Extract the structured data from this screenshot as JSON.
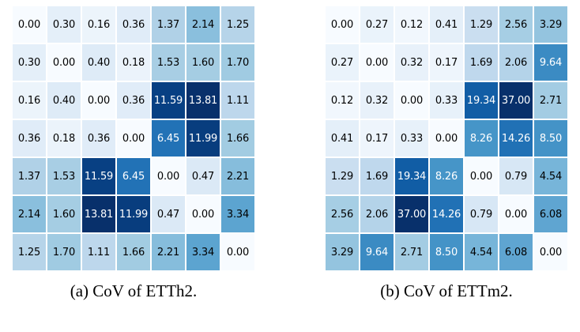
{
  "figure": {
    "caption_a": "(a) CoV of ETTh2.",
    "caption_b": "(b) CoV of ETTm2."
  },
  "colors": {
    "background": "#ffffff",
    "text_dark": "#000000",
    "text_light": "#ffffff",
    "white_text_threshold": 0.6,
    "blues_stops": [
      "#f7fbff",
      "#deebf7",
      "#c6dbef",
      "#9ecae1",
      "#6baed6",
      "#4292c6",
      "#2171b5",
      "#08519c",
      "#08306b"
    ]
  },
  "chart_data": [
    {
      "type": "heatmap",
      "title": "(a) CoV of ETTh2.",
      "rows": 7,
      "cols": 7,
      "colormap": "Blues",
      "scale": "log1p-normalized",
      "value_format": "0.00",
      "values": [
        [
          0.0,
          0.3,
          0.16,
          0.36,
          1.37,
          2.14,
          1.25
        ],
        [
          0.3,
          0.0,
          0.4,
          0.18,
          1.53,
          1.6,
          1.7
        ],
        [
          0.16,
          0.4,
          0.0,
          0.36,
          11.59,
          13.81,
          1.11
        ],
        [
          0.36,
          0.18,
          0.36,
          0.0,
          6.45,
          11.99,
          1.66
        ],
        [
          1.37,
          1.53,
          11.59,
          6.45,
          0.0,
          0.47,
          2.21
        ],
        [
          2.14,
          1.6,
          13.81,
          11.99,
          0.47,
          0.0,
          3.34
        ],
        [
          1.25,
          1.7,
          1.11,
          1.66,
          2.21,
          3.34,
          0.0
        ]
      ]
    },
    {
      "type": "heatmap",
      "title": "(b) CoV of ETTm2.",
      "rows": 7,
      "cols": 7,
      "colormap": "Blues",
      "scale": "log1p-normalized",
      "value_format": "0.00",
      "values": [
        [
          0.0,
          0.27,
          0.12,
          0.41,
          1.29,
          2.56,
          3.29
        ],
        [
          0.27,
          0.0,
          0.32,
          0.17,
          1.69,
          2.06,
          9.64
        ],
        [
          0.12,
          0.32,
          0.0,
          0.33,
          19.34,
          37.0,
          2.71
        ],
        [
          0.41,
          0.17,
          0.33,
          0.0,
          8.26,
          14.26,
          8.5
        ],
        [
          1.29,
          1.69,
          19.34,
          8.26,
          0.0,
          0.79,
          4.54
        ],
        [
          2.56,
          2.06,
          37.0,
          14.26,
          0.79,
          0.0,
          6.08
        ],
        [
          3.29,
          9.64,
          2.71,
          8.5,
          4.54,
          6.08,
          0.0
        ]
      ]
    }
  ]
}
